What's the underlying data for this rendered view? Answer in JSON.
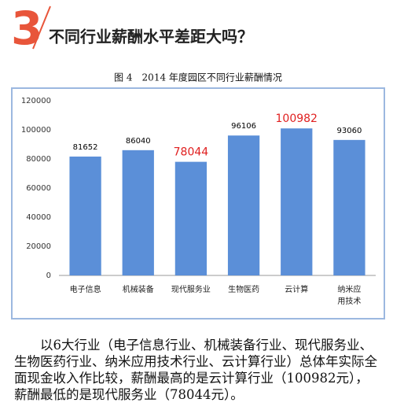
{
  "header": {
    "number": "3",
    "title": "不同行业薪酬水平差距大吗？"
  },
  "chart_data": {
    "type": "bar",
    "title": "图 4　2014 年度园区不同行业薪酬情况",
    "categories": [
      "电子信息",
      "机械装备",
      "现代服务业",
      "生物医药",
      "云计算",
      "纳米应用技术"
    ],
    "values": [
      81652,
      86040,
      78044,
      96106,
      100982,
      93060
    ],
    "value_label_colors": [
      "#000000",
      "#000000",
      "#e02020",
      "#000000",
      "#e02020",
      "#000000"
    ],
    "color": "#5b8fd8",
    "ylim": [
      0,
      120000
    ],
    "yticks": [
      0,
      20000,
      40000,
      60000,
      80000,
      100000,
      120000
    ],
    "grid": false
  },
  "paragraph": "以6大行业（电子信息行业、机械装备行业、现代服务业、生物医药行业、纳米应用技术行业、云计算行业）总体年实际全面现金收入作比较，薪酬最高的是云计算行业（100982元），薪酬最低的是现代服务业（78044元）。"
}
